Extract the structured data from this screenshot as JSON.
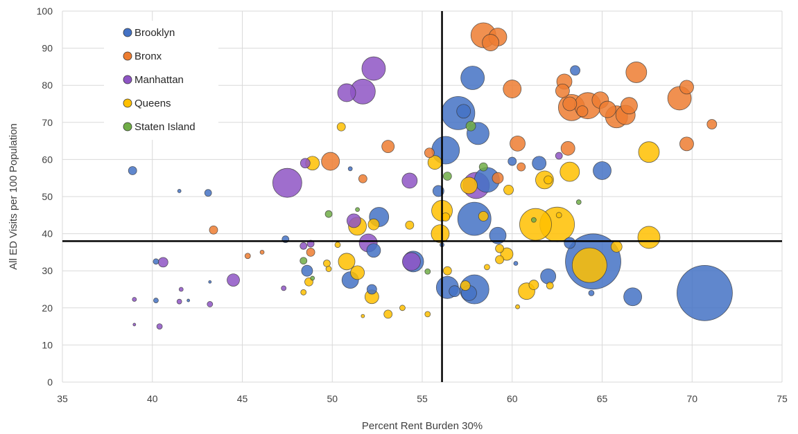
{
  "chart_data": {
    "type": "bubble",
    "xlabel": "Percent Rent Burden 30%",
    "ylabel": "All ED Visits per 100 Population",
    "xlim": [
      35,
      75
    ],
    "ylim": [
      0,
      100
    ],
    "x_ticks": [
      35,
      40,
      45,
      50,
      55,
      60,
      65,
      70,
      75
    ],
    "y_ticks": [
      0,
      10,
      20,
      30,
      40,
      50,
      60,
      70,
      80,
      90,
      100
    ],
    "grid": true,
    "legend_position": "top-left",
    "reference_lines": {
      "x": 56.1,
      "y": 38
    },
    "series": [
      {
        "name": "Brooklyn",
        "color": "#4472C4",
        "points": [
          {
            "x": 38.9,
            "y": 57,
            "r": 6
          },
          {
            "x": 43.1,
            "y": 51,
            "r": 5
          },
          {
            "x": 41.5,
            "y": 51.5,
            "r": 2.5
          },
          {
            "x": 40.2,
            "y": 32.5,
            "r": 4
          },
          {
            "x": 40.2,
            "y": 22,
            "r": 3.5
          },
          {
            "x": 42,
            "y": 22,
            "r": 2
          },
          {
            "x": 43.2,
            "y": 27,
            "r": 2
          },
          {
            "x": 47.4,
            "y": 38.5,
            "r": 5
          },
          {
            "x": 48.6,
            "y": 30,
            "r": 8
          },
          {
            "x": 51,
            "y": 57.5,
            "r": 3
          },
          {
            "x": 51,
            "y": 27.5,
            "r": 12
          },
          {
            "x": 52.2,
            "y": 25,
            "r": 7
          },
          {
            "x": 52.3,
            "y": 35.5,
            "r": 10
          },
          {
            "x": 52.6,
            "y": 44.5,
            "r": 14
          },
          {
            "x": 54.5,
            "y": 32.5,
            "r": 15
          },
          {
            "x": 55.9,
            "y": 51.5,
            "r": 8
          },
          {
            "x": 56.1,
            "y": 37,
            "r": 3
          },
          {
            "x": 56.3,
            "y": 62.5,
            "r": 20
          },
          {
            "x": 56.4,
            "y": 25.5,
            "r": 16
          },
          {
            "x": 56.8,
            "y": 24.5,
            "r": 8
          },
          {
            "x": 57,
            "y": 72.5,
            "r": 24
          },
          {
            "x": 57.3,
            "y": 73,
            "r": 10
          },
          {
            "x": 57.8,
            "y": 82,
            "r": 17
          },
          {
            "x": 58.1,
            "y": 67,
            "r": 16
          },
          {
            "x": 57.9,
            "y": 44,
            "r": 24
          },
          {
            "x": 57.6,
            "y": 24,
            "r": 11
          },
          {
            "x": 57.9,
            "y": 25,
            "r": 21
          },
          {
            "x": 58.6,
            "y": 54.5,
            "r": 18
          },
          {
            "x": 59.2,
            "y": 39.5,
            "r": 12
          },
          {
            "x": 60,
            "y": 59.5,
            "r": 6
          },
          {
            "x": 60.2,
            "y": 32,
            "r": 3
          },
          {
            "x": 61.5,
            "y": 59,
            "r": 10
          },
          {
            "x": 62,
            "y": 28.5,
            "r": 11
          },
          {
            "x": 63.2,
            "y": 37.5,
            "r": 8
          },
          {
            "x": 63.5,
            "y": 84,
            "r": 7
          },
          {
            "x": 64.5,
            "y": 32.5,
            "r": 40
          },
          {
            "x": 64.4,
            "y": 24,
            "r": 4
          },
          {
            "x": 65,
            "y": 57,
            "r": 13
          },
          {
            "x": 66.7,
            "y": 23,
            "r": 13
          },
          {
            "x": 70.7,
            "y": 24,
            "r": 40
          }
        ]
      },
      {
        "name": "Bronx",
        "color": "#ED7D31",
        "points": [
          {
            "x": 43.4,
            "y": 41,
            "r": 6
          },
          {
            "x": 45.3,
            "y": 34,
            "r": 4
          },
          {
            "x": 46.1,
            "y": 35,
            "r": 3
          },
          {
            "x": 48.8,
            "y": 35,
            "r": 6
          },
          {
            "x": 49.9,
            "y": 59.5,
            "r": 13
          },
          {
            "x": 51.7,
            "y": 54.8,
            "r": 6
          },
          {
            "x": 53.1,
            "y": 63.5,
            "r": 9
          },
          {
            "x": 55.4,
            "y": 61.8,
            "r": 7
          },
          {
            "x": 58.4,
            "y": 93.5,
            "r": 18
          },
          {
            "x": 58.8,
            "y": 91.5,
            "r": 12
          },
          {
            "x": 59.2,
            "y": 93,
            "r": 13
          },
          {
            "x": 60,
            "y": 79,
            "r": 13
          },
          {
            "x": 60.3,
            "y": 64.3,
            "r": 11
          },
          {
            "x": 60.5,
            "y": 58,
            "r": 6
          },
          {
            "x": 62.8,
            "y": 78.5,
            "r": 10
          },
          {
            "x": 62.9,
            "y": 81,
            "r": 11
          },
          {
            "x": 63.1,
            "y": 63,
            "r": 10
          },
          {
            "x": 63.2,
            "y": 75,
            "r": 10
          },
          {
            "x": 63.3,
            "y": 74,
            "r": 19
          },
          {
            "x": 63.9,
            "y": 73,
            "r": 8
          },
          {
            "x": 64.2,
            "y": 74.5,
            "r": 19
          },
          {
            "x": 64.9,
            "y": 76,
            "r": 12
          },
          {
            "x": 65.3,
            "y": 73.5,
            "r": 12
          },
          {
            "x": 65.8,
            "y": 71.5,
            "r": 16
          },
          {
            "x": 66.3,
            "y": 72,
            "r": 14
          },
          {
            "x": 66.5,
            "y": 74.5,
            "r": 12
          },
          {
            "x": 66.9,
            "y": 83.5,
            "r": 15
          },
          {
            "x": 69.3,
            "y": 76.5,
            "r": 17
          },
          {
            "x": 69.7,
            "y": 64.2,
            "r": 10
          },
          {
            "x": 69.7,
            "y": 79.5,
            "r": 10
          },
          {
            "x": 71.1,
            "y": 69.5,
            "r": 7
          },
          {
            "x": 59.2,
            "y": 55,
            "r": 8
          }
        ]
      },
      {
        "name": "Manhattan",
        "color": "#8E55C4",
        "points": [
          {
            "x": 39,
            "y": 22.3,
            "r": 3
          },
          {
            "x": 39,
            "y": 15.5,
            "r": 2
          },
          {
            "x": 40.4,
            "y": 15,
            "r": 4
          },
          {
            "x": 40.6,
            "y": 32.3,
            "r": 7
          },
          {
            "x": 41.6,
            "y": 25,
            "r": 3
          },
          {
            "x": 41.5,
            "y": 21.7,
            "r": 3.5
          },
          {
            "x": 43.2,
            "y": 21,
            "r": 4
          },
          {
            "x": 44.5,
            "y": 27.5,
            "r": 9
          },
          {
            "x": 47.5,
            "y": 53.7,
            "r": 21
          },
          {
            "x": 48.8,
            "y": 37.3,
            "r": 5
          },
          {
            "x": 48.4,
            "y": 36.7,
            "r": 5
          },
          {
            "x": 50.8,
            "y": 78,
            "r": 13
          },
          {
            "x": 51.2,
            "y": 43.5,
            "r": 10
          },
          {
            "x": 51.7,
            "y": 78.3,
            "r": 18
          },
          {
            "x": 52.3,
            "y": 84.5,
            "r": 17
          },
          {
            "x": 52,
            "y": 37.5,
            "r": 13
          },
          {
            "x": 54.3,
            "y": 54.3,
            "r": 11
          },
          {
            "x": 54.4,
            "y": 32.5,
            "r": 13
          },
          {
            "x": 58,
            "y": 53,
            "r": 19
          },
          {
            "x": 62.6,
            "y": 61,
            "r": 5
          },
          {
            "x": 47.3,
            "y": 25.3,
            "r": 3.5
          },
          {
            "x": 48.5,
            "y": 59,
            "r": 7
          }
        ]
      },
      {
        "name": "Queens",
        "color": "#FFC000",
        "points": [
          {
            "x": 48.7,
            "y": 27,
            "r": 6
          },
          {
            "x": 48.4,
            "y": 24.2,
            "r": 4
          },
          {
            "x": 49.8,
            "y": 30.5,
            "r": 4
          },
          {
            "x": 49.7,
            "y": 32,
            "r": 5
          },
          {
            "x": 48.9,
            "y": 59,
            "r": 10
          },
          {
            "x": 50.3,
            "y": 37,
            "r": 4
          },
          {
            "x": 50.5,
            "y": 68.8,
            "r": 6
          },
          {
            "x": 50.8,
            "y": 32.5,
            "r": 12
          },
          {
            "x": 51.4,
            "y": 29.5,
            "r": 10
          },
          {
            "x": 51.4,
            "y": 42,
            "r": 13
          },
          {
            "x": 52.3,
            "y": 42.5,
            "r": 8
          },
          {
            "x": 51.7,
            "y": 17.8,
            "r": 2.5
          },
          {
            "x": 52.2,
            "y": 23,
            "r": 10
          },
          {
            "x": 53.1,
            "y": 18.3,
            "r": 6
          },
          {
            "x": 53.9,
            "y": 20,
            "r": 4
          },
          {
            "x": 54.3,
            "y": 42.3,
            "r": 6
          },
          {
            "x": 55.3,
            "y": 18.3,
            "r": 4
          },
          {
            "x": 55.7,
            "y": 59.2,
            "r": 10
          },
          {
            "x": 56,
            "y": 40,
            "r": 13
          },
          {
            "x": 56.1,
            "y": 46.2,
            "r": 15
          },
          {
            "x": 56.3,
            "y": 44.5,
            "r": 6
          },
          {
            "x": 56.4,
            "y": 30,
            "r": 6
          },
          {
            "x": 57.4,
            "y": 26,
            "r": 7
          },
          {
            "x": 57.6,
            "y": 53,
            "r": 12
          },
          {
            "x": 58.4,
            "y": 44.7,
            "r": 7
          },
          {
            "x": 58.6,
            "y": 31,
            "r": 4
          },
          {
            "x": 59.3,
            "y": 36,
            "r": 6
          },
          {
            "x": 59.7,
            "y": 34.5,
            "r": 9
          },
          {
            "x": 59.8,
            "y": 51.8,
            "r": 7
          },
          {
            "x": 60.3,
            "y": 20.3,
            "r": 3
          },
          {
            "x": 60.8,
            "y": 24.5,
            "r": 12
          },
          {
            "x": 61.2,
            "y": 26.2,
            "r": 7
          },
          {
            "x": 61.3,
            "y": 42.5,
            "r": 23
          },
          {
            "x": 61.8,
            "y": 54.5,
            "r": 13
          },
          {
            "x": 62.1,
            "y": 26,
            "r": 5
          },
          {
            "x": 62.5,
            "y": 42.5,
            "r": 25
          },
          {
            "x": 62.6,
            "y": 45,
            "r": 4
          },
          {
            "x": 63.2,
            "y": 56.7,
            "r": 14
          },
          {
            "x": 64.3,
            "y": 31.5,
            "r": 25
          },
          {
            "x": 65.8,
            "y": 36.5,
            "r": 8
          },
          {
            "x": 67.6,
            "y": 62,
            "r": 15
          },
          {
            "x": 67.6,
            "y": 39,
            "r": 16
          },
          {
            "x": 62,
            "y": 54.5,
            "r": 6
          },
          {
            "x": 59.3,
            "y": 33,
            "r": 6
          }
        ]
      },
      {
        "name": "Staten Island",
        "color": "#70AD47",
        "points": [
          {
            "x": 48.4,
            "y": 32.7,
            "r": 5
          },
          {
            "x": 49.8,
            "y": 45.3,
            "r": 5
          },
          {
            "x": 51.4,
            "y": 46.5,
            "r": 3
          },
          {
            "x": 55.3,
            "y": 29.8,
            "r": 4
          },
          {
            "x": 56.4,
            "y": 55.5,
            "r": 6
          },
          {
            "x": 57.7,
            "y": 69,
            "r": 7
          },
          {
            "x": 58.4,
            "y": 58,
            "r": 6
          },
          {
            "x": 61.2,
            "y": 43.7,
            "r": 3.5
          },
          {
            "x": 63.7,
            "y": 48.5,
            "r": 3.5
          },
          {
            "x": 48.9,
            "y": 28,
            "r": 3
          }
        ]
      }
    ]
  }
}
